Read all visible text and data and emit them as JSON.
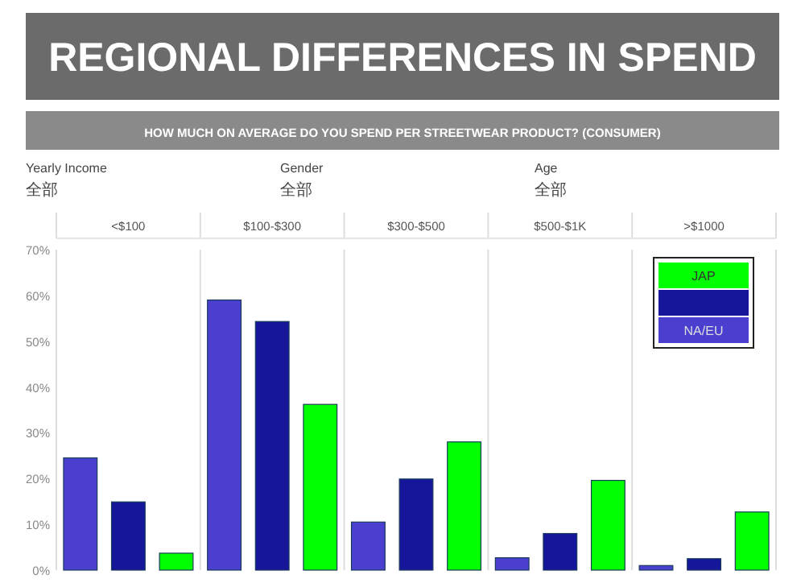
{
  "chart_data": {
    "type": "bar",
    "title": "REGIONAL DIFFERENCES IN SPEND",
    "subtitle": "HOW MUCH ON AVERAGE DO YOU SPEND PER STREETWEAR PRODUCT? (CONSUMER)",
    "annotations": [
      "Yearly Income",
      "全部",
      "Gender",
      "全部",
      "Age",
      "全部"
    ],
    "categories": [
      "<$100",
      "$100-$300",
      "$300-$500",
      "$500-$1K",
      ">$1000"
    ],
    "series": [
      {
        "name": "NA/EU",
        "color": "#4b3fcf",
        "values": [
          24.5,
          59,
          10.5,
          2.7,
          1
        ]
      },
      {
        "color": "#16169a",
        "values": [
          14.9,
          54.3,
          19.9,
          8,
          2.5
        ]
      },
      {
        "name": "JAP",
        "color": "#00ff00",
        "values": [
          3.7,
          36.2,
          28,
          19.6,
          12.7
        ]
      }
    ],
    "ylim": [
      0,
      70
    ],
    "yticks": [
      {
        "value": 0,
        "label": "0%"
      },
      {
        "value": 10,
        "label": "10%"
      },
      {
        "value": 20,
        "label": "20%"
      },
      {
        "value": 30,
        "label": "30%"
      },
      {
        "value": 40,
        "label": "40%"
      },
      {
        "value": 50,
        "label": "50%"
      },
      {
        "value": 60,
        "label": "60%"
      },
      {
        "value": 70,
        "label": "70%"
      }
    ],
    "legend": "top right"
  }
}
